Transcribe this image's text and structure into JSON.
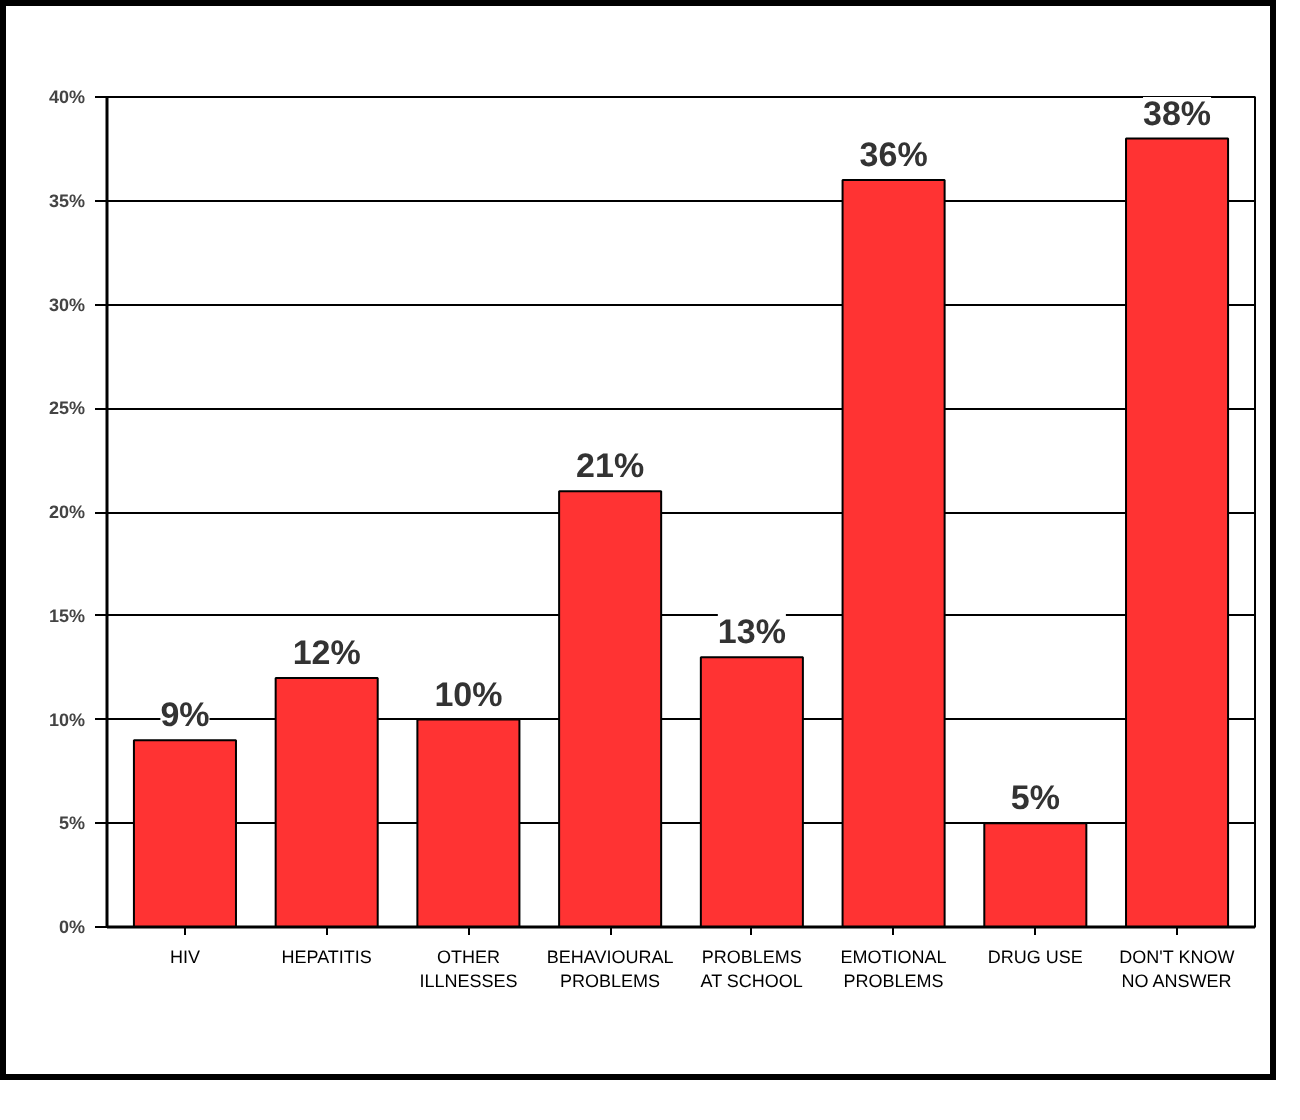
{
  "chart_data": {
    "type": "bar",
    "categories": [
      "HIV",
      "HEPATITIS",
      "OTHER\nILLNESSES",
      "BEHAVIOURAL\nPROBLEMS",
      "PROBLEMS\nAT SCHOOL",
      "EMOTIONAL\nPROBLEMS",
      "DRUG USE",
      "DON'T KNOW\nNO ANSWER"
    ],
    "values": [
      9,
      12,
      10,
      21,
      13,
      36,
      5,
      38
    ],
    "value_labels": [
      "9%",
      "12%",
      "10%",
      "21%",
      "13%",
      "36%",
      "5%",
      "38%"
    ],
    "color": "#ff3333",
    "ylim": [
      0,
      40
    ],
    "yticks": [
      {
        "value": 0,
        "label": "0%"
      },
      {
        "value": 5,
        "label": "5%"
      },
      {
        "value": 10,
        "label": "10%"
      },
      {
        "value": 15,
        "label": "15%"
      },
      {
        "value": 20,
        "label": "20%"
      },
      {
        "value": 25,
        "label": "25%"
      },
      {
        "value": 30,
        "label": "30%"
      },
      {
        "value": 35,
        "label": "35%"
      },
      {
        "value": 40,
        "label": "40%"
      }
    ],
    "grid": "y"
  }
}
